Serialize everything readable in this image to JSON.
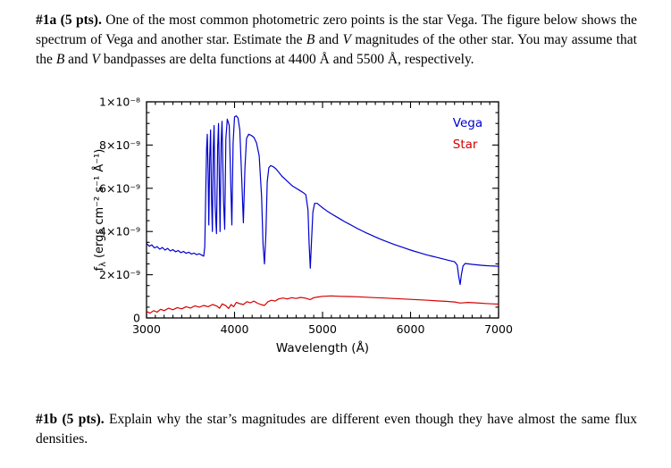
{
  "problem_1a": {
    "segments": [
      {
        "t": "#1a (5 pts).",
        "b": true
      },
      {
        "t": " One of the most common photometric zero points is the star Vega. The figure below shows the spectrum of Vega and another star. Estimate the "
      },
      {
        "t": "B",
        "i": true
      },
      {
        "t": " and "
      },
      {
        "t": "V",
        "i": true
      },
      {
        "t": " magnitudes of the other star. You may assume that the "
      },
      {
        "t": "B",
        "i": true
      },
      {
        "t": " and "
      },
      {
        "t": "V",
        "i": true
      },
      {
        "t": " bandpasses are delta functions at 4400 Å and 5500 Å, respectively."
      }
    ]
  },
  "problem_1b": {
    "segments": [
      {
        "t": "#1b (5 pts).",
        "b": true
      },
      {
        "t": " Explain why the star’s magnitudes are different even though they have almost the same flux densities."
      }
    ]
  },
  "chart_data": {
    "type": "line",
    "title": "",
    "xlabel": "Wavelength (Å)",
    "ylabel": {
      "prefix": "f",
      "sub": "λ",
      "suffix": " (ergs cm⁻² s⁻¹ Å⁻¹)"
    },
    "xlim": [
      3000,
      7000
    ],
    "ylim": [
      0,
      10
    ],
    "y_unit": "10⁻⁹ ergs cm⁻² s⁻¹ Å⁻¹",
    "grid": false,
    "x_ticks": {
      "major": [
        3000,
        4000,
        5000,
        6000,
        7000
      ],
      "labels": [
        "3000",
        "4000",
        "5000",
        "6000",
        "7000"
      ],
      "minor_step": 100
    },
    "y_ticks": {
      "major": [
        0,
        2,
        4,
        6,
        8,
        10
      ],
      "labels": [
        "0",
        "2×10⁻⁹",
        "4×10⁻⁹",
        "6×10⁻⁹",
        "8×10⁻⁹",
        "1×10⁻⁸"
      ],
      "minor_step": 0.5
    },
    "legend": [
      {
        "label": "Vega",
        "color": "#0000d0",
        "x": 6480,
        "y": 8.85
      },
      {
        "label": "Star",
        "color": "#d40000",
        "x": 6480,
        "y": 7.85
      }
    ],
    "series": [
      {
        "name": "Vega",
        "color": "#0000d0",
        "points": [
          [
            3000,
            3.45
          ],
          [
            3030,
            3.32
          ],
          [
            3060,
            3.38
          ],
          [
            3090,
            3.24
          ],
          [
            3120,
            3.3
          ],
          [
            3150,
            3.18
          ],
          [
            3180,
            3.26
          ],
          [
            3210,
            3.14
          ],
          [
            3240,
            3.22
          ],
          [
            3270,
            3.1
          ],
          [
            3300,
            3.16
          ],
          [
            3330,
            3.06
          ],
          [
            3360,
            3.12
          ],
          [
            3390,
            3.02
          ],
          [
            3420,
            3.08
          ],
          [
            3450,
            2.99
          ],
          [
            3480,
            3.04
          ],
          [
            3510,
            2.96
          ],
          [
            3540,
            3.0
          ],
          [
            3570,
            2.93
          ],
          [
            3600,
            2.97
          ],
          [
            3630,
            2.9
          ],
          [
            3650,
            2.86
          ],
          [
            3662,
            3.3
          ],
          [
            3672,
            5.6
          ],
          [
            3682,
            7.8
          ],
          [
            3690,
            8.5
          ],
          [
            3700,
            6.8
          ],
          [
            3708,
            4.3
          ],
          [
            3718,
            7.4
          ],
          [
            3728,
            8.7
          ],
          [
            3738,
            5.6
          ],
          [
            3748,
            4.0
          ],
          [
            3758,
            7.8
          ],
          [
            3768,
            8.9
          ],
          [
            3780,
            5.2
          ],
          [
            3795,
            3.9
          ],
          [
            3808,
            7.9
          ],
          [
            3818,
            9.0
          ],
          [
            3828,
            6.0
          ],
          [
            3836,
            4.0
          ],
          [
            3848,
            8.1
          ],
          [
            3858,
            9.1
          ],
          [
            3875,
            5.4
          ],
          [
            3888,
            4.1
          ],
          [
            3902,
            8.3
          ],
          [
            3918,
            9.2
          ],
          [
            3940,
            8.9
          ],
          [
            3958,
            6.0
          ],
          [
            3970,
            4.3
          ],
          [
            3984,
            8.1
          ],
          [
            4000,
            9.3
          ],
          [
            4020,
            9.35
          ],
          [
            4040,
            9.25
          ],
          [
            4060,
            8.7
          ],
          [
            4080,
            6.6
          ],
          [
            4100,
            4.4
          ],
          [
            4118,
            6.9
          ],
          [
            4136,
            8.3
          ],
          [
            4160,
            8.5
          ],
          [
            4190,
            8.45
          ],
          [
            4220,
            8.35
          ],
          [
            4250,
            8.1
          ],
          [
            4280,
            7.5
          ],
          [
            4308,
            5.6
          ],
          [
            4324,
            3.4
          ],
          [
            4340,
            2.5
          ],
          [
            4356,
            3.9
          ],
          [
            4372,
            6.3
          ],
          [
            4390,
            6.95
          ],
          [
            4410,
            7.05
          ],
          [
            4440,
            7.0
          ],
          [
            4470,
            6.9
          ],
          [
            4500,
            6.75
          ],
          [
            4540,
            6.55
          ],
          [
            4580,
            6.4
          ],
          [
            4620,
            6.25
          ],
          [
            4660,
            6.1
          ],
          [
            4700,
            6.0
          ],
          [
            4740,
            5.9
          ],
          [
            4780,
            5.8
          ],
          [
            4810,
            5.7
          ],
          [
            4835,
            5.0
          ],
          [
            4848,
            3.4
          ],
          [
            4861,
            2.3
          ],
          [
            4875,
            3.6
          ],
          [
            4890,
            4.9
          ],
          [
            4910,
            5.3
          ],
          [
            4940,
            5.3
          ],
          [
            4970,
            5.2
          ],
          [
            5000,
            5.1
          ],
          [
            5050,
            4.95
          ],
          [
            5100,
            4.82
          ],
          [
            5150,
            4.7
          ],
          [
            5200,
            4.58
          ],
          [
            5250,
            4.46
          ],
          [
            5300,
            4.35
          ],
          [
            5350,
            4.24
          ],
          [
            5400,
            4.13
          ],
          [
            5450,
            4.03
          ],
          [
            5500,
            3.93
          ],
          [
            5550,
            3.84
          ],
          [
            5600,
            3.75
          ],
          [
            5650,
            3.66
          ],
          [
            5700,
            3.58
          ],
          [
            5750,
            3.5
          ],
          [
            5800,
            3.42
          ],
          [
            5850,
            3.35
          ],
          [
            5900,
            3.28
          ],
          [
            5950,
            3.21
          ],
          [
            6000,
            3.14
          ],
          [
            6050,
            3.08
          ],
          [
            6100,
            3.02
          ],
          [
            6150,
            2.96
          ],
          [
            6200,
            2.9
          ],
          [
            6250,
            2.85
          ],
          [
            6300,
            2.8
          ],
          [
            6350,
            2.75
          ],
          [
            6400,
            2.7
          ],
          [
            6450,
            2.65
          ],
          [
            6500,
            2.6
          ],
          [
            6530,
            2.45
          ],
          [
            6548,
            1.9
          ],
          [
            6563,
            1.55
          ],
          [
            6578,
            2.0
          ],
          [
            6596,
            2.4
          ],
          [
            6620,
            2.52
          ],
          [
            6660,
            2.5
          ],
          [
            6700,
            2.48
          ],
          [
            6750,
            2.46
          ],
          [
            6800,
            2.44
          ],
          [
            6850,
            2.42
          ],
          [
            6900,
            2.41
          ],
          [
            6950,
            2.4
          ],
          [
            7000,
            2.39
          ]
        ]
      },
      {
        "name": "Star",
        "color": "#d40000",
        "points": [
          [
            3000,
            0.3
          ],
          [
            3040,
            0.22
          ],
          [
            3080,
            0.34
          ],
          [
            3120,
            0.27
          ],
          [
            3160,
            0.4
          ],
          [
            3200,
            0.34
          ],
          [
            3250,
            0.45
          ],
          [
            3300,
            0.38
          ],
          [
            3350,
            0.48
          ],
          [
            3400,
            0.42
          ],
          [
            3450,
            0.52
          ],
          [
            3500,
            0.46
          ],
          [
            3550,
            0.56
          ],
          [
            3600,
            0.5
          ],
          [
            3650,
            0.58
          ],
          [
            3700,
            0.52
          ],
          [
            3750,
            0.62
          ],
          [
            3800,
            0.55
          ],
          [
            3830,
            0.45
          ],
          [
            3860,
            0.65
          ],
          [
            3900,
            0.57
          ],
          [
            3933,
            0.44
          ],
          [
            3960,
            0.62
          ],
          [
            3990,
            0.52
          ],
          [
            4020,
            0.72
          ],
          [
            4060,
            0.66
          ],
          [
            4100,
            0.62
          ],
          [
            4140,
            0.75
          ],
          [
            4180,
            0.7
          ],
          [
            4220,
            0.78
          ],
          [
            4260,
            0.68
          ],
          [
            4300,
            0.62
          ],
          [
            4340,
            0.58
          ],
          [
            4380,
            0.75
          ],
          [
            4420,
            0.82
          ],
          [
            4460,
            0.78
          ],
          [
            4500,
            0.88
          ],
          [
            4550,
            0.92
          ],
          [
            4600,
            0.88
          ],
          [
            4650,
            0.94
          ],
          [
            4700,
            0.9
          ],
          [
            4750,
            0.95
          ],
          [
            4800,
            0.92
          ],
          [
            4861,
            0.85
          ],
          [
            4900,
            0.94
          ],
          [
            4950,
            0.97
          ],
          [
            5000,
            1.0
          ],
          [
            5100,
            1.02
          ],
          [
            5200,
            1.0
          ],
          [
            5300,
            0.99
          ],
          [
            5400,
            0.98
          ],
          [
            5500,
            0.96
          ],
          [
            5600,
            0.94
          ],
          [
            5700,
            0.92
          ],
          [
            5800,
            0.9
          ],
          [
            5900,
            0.88
          ],
          [
            6000,
            0.86
          ],
          [
            6100,
            0.84
          ],
          [
            6200,
            0.82
          ],
          [
            6300,
            0.79
          ],
          [
            6400,
            0.77
          ],
          [
            6500,
            0.74
          ],
          [
            6563,
            0.69
          ],
          [
            6650,
            0.72
          ],
          [
            6750,
            0.7
          ],
          [
            6850,
            0.67
          ],
          [
            6950,
            0.65
          ],
          [
            7000,
            0.64
          ]
        ]
      }
    ]
  }
}
